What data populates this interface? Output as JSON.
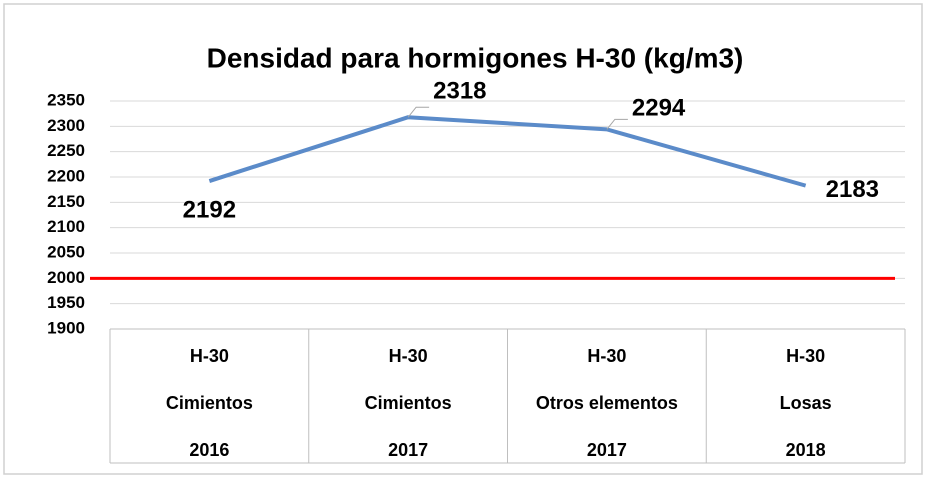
{
  "chart_data": {
    "type": "line",
    "title": "Densidad para hormigones  H-30  (kg/m3)",
    "categories": [
      [
        "H-30",
        "Cimientos",
        "2016"
      ],
      [
        "H-30",
        "Cimientos",
        "2017"
      ],
      [
        "H-30",
        "Otros elementos",
        "2017"
      ],
      [
        "H-30",
        "Losas",
        "2018"
      ]
    ],
    "series": [
      {
        "color": "#5b8bc9",
        "values": [
          2192,
          2318,
          2294,
          2183
        ]
      }
    ],
    "reference_line": {
      "value": 2000,
      "color": "#ff0000"
    },
    "ylim": [
      1900,
      2350
    ],
    "yticks": [
      1900,
      1950,
      2000,
      2050,
      2100,
      2150,
      2200,
      2250,
      2300,
      2350
    ],
    "grid": true
  }
}
